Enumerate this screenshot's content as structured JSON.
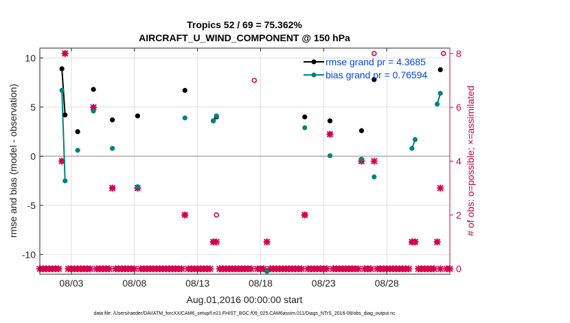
{
  "chart_data": {
    "type": "scatter",
    "title": "Tropics 52 / 69 = 75.362%",
    "subtitle": "AIRCRAFT_U_WIND_COMPONENT @ 150 hPa",
    "xlabel": "Aug.01,2016 00:00:00 start",
    "ylabel": "rmse and bias (model - observation)",
    "y2label": "# of obs: o=possible; ×=assimilated",
    "xlim": [
      0,
      32.5
    ],
    "ylim": [
      -12,
      11
    ],
    "y2lim": [
      -0.2,
      8.2
    ],
    "x_ticks": [
      2.5,
      7.5,
      12.5,
      17.5,
      22.5,
      27.5
    ],
    "x_tick_labels": [
      "08/03",
      "08/08",
      "08/13",
      "08/18",
      "08/23",
      "08/28"
    ],
    "y_ticks": [
      10,
      5,
      0,
      -5,
      -10
    ],
    "y_tick_labels": [
      "10",
      "5",
      "0",
      "-5",
      "-10"
    ],
    "y2_ticks": [
      8,
      6,
      4,
      2,
      0
    ],
    "y2_tick_labels": [
      "8",
      "6",
      "4",
      "2",
      "0"
    ],
    "grid": true,
    "zero_line": true,
    "legend_position": "top-right",
    "footnote": "data file: /Users/raeder/DAI/ATM_forcXX/CAM6_setup/f.e21.FHIST_BGC.f09_025.CAM6assim.011/Diags_NTrS_2016-08/obs_diag_output.nc",
    "colors": {
      "rmse": "#000000",
      "bias": "#008080",
      "obs": "#d4004f",
      "grid": "#d9d9d9",
      "zero": "#b0b0b0"
    },
    "series": [
      {
        "name": "rmse grand pr = 4.3685",
        "axis": "left",
        "points": [
          [
            1.75,
            8.9
          ],
          [
            2.0,
            4.2
          ],
          [
            3.0,
            2.5
          ],
          [
            4.25,
            6.8
          ],
          [
            5.75,
            3.7
          ],
          [
            7.75,
            4.1
          ],
          [
            11.5,
            6.7
          ],
          [
            13.75,
            3.6
          ],
          [
            14.0,
            4.0
          ],
          [
            18.0,
            -11.7
          ],
          [
            21.0,
            4.0
          ],
          [
            23.0,
            3.6
          ],
          [
            25.5,
            2.6
          ],
          [
            26.5,
            7.8
          ],
          [
            31.75,
            8.8
          ]
        ]
      },
      {
        "name": "bias grand pr = 0.76594",
        "axis": "left",
        "points": [
          [
            1.75,
            6.7
          ],
          [
            2.0,
            -2.5
          ],
          [
            3.0,
            0.6
          ],
          [
            4.25,
            4.6
          ],
          [
            5.75,
            0.8
          ],
          [
            7.75,
            -3.1
          ],
          [
            11.5,
            3.9
          ],
          [
            13.75,
            3.6
          ],
          [
            14.0,
            4.1
          ],
          [
            18.0,
            -11.7
          ],
          [
            21.0,
            2.9
          ],
          [
            23.0,
            0.05
          ],
          [
            25.5,
            -0.3
          ],
          [
            26.5,
            -2.1
          ],
          [
            29.5,
            0.8
          ],
          [
            29.75,
            1.7
          ],
          [
            31.5,
            5.3
          ],
          [
            31.75,
            6.4
          ]
        ]
      },
      {
        "name": "# assimilated",
        "axis": "right",
        "x": [
          1.75,
          2.0,
          4.25,
          5.75,
          7.75,
          11.5,
          13.75,
          14.0,
          18.0,
          21.0,
          23.0,
          25.5,
          26.5,
          29.5,
          29.75,
          31.5,
          31.75
        ],
        "values": [
          4,
          8,
          6,
          3,
          3,
          2,
          1,
          1,
          1,
          2,
          5,
          4,
          4,
          1,
          1,
          1,
          3
        ]
      },
      {
        "name": "# possible",
        "axis": "right",
        "x": [
          1.75,
          2.0,
          4.25,
          5.75,
          7.75,
          11.5,
          13.75,
          14.0,
          17.0,
          18.0,
          21.0,
          23.0,
          25.5,
          26.5,
          29.5,
          29.75,
          31.5,
          32.0
        ],
        "values": [
          4,
          8,
          6,
          3,
          3,
          2,
          1,
          2,
          7.0,
          1,
          2,
          5,
          4,
          8,
          1,
          1,
          1,
          8
        ]
      }
    ]
  }
}
